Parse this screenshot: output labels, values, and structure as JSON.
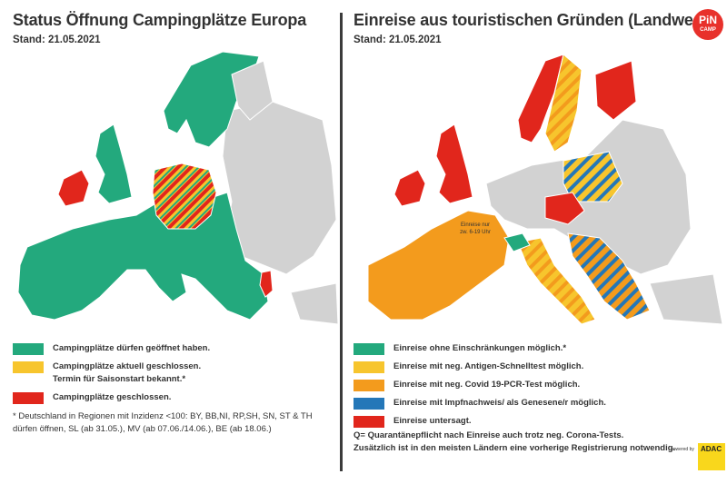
{
  "colors": {
    "green": "#23a97d",
    "yellow": "#f7c52d",
    "red": "#e1261c",
    "orange": "#f39b1d",
    "blue": "#2477b8",
    "grey": "#d2d2d2",
    "text": "#333333"
  },
  "left": {
    "title": "Status Öffnung Campingplätze Europa",
    "stand": "Stand: 21.05.2021",
    "legend": [
      {
        "color": "green",
        "text": "Campingplätze dürfen geöffnet haben."
      },
      {
        "color": "yellow",
        "text": "Campingplätze aktuell geschlossen."
      },
      {
        "color": "none",
        "text": "Termin für Saisonstart bekannt.*"
      },
      {
        "color": "red",
        "text": "Campingplätze geschlossen."
      }
    ],
    "footnote_line1": "* Deutschland in Regionen mit Inzidenz <100:  BY, BB,NI, RP,SH, SN, ST & TH",
    "footnote_line2": "dürfen öffnen, SL (ab 31.05.), MV (ab 07.06./14.06.), BE (ab 18.06.)"
  },
  "right": {
    "title": "Einreise aus touristischen Gründen (Landweg)",
    "stand": "Stand: 21.05.2021",
    "map_label_line1": "Einreise nur",
    "map_label_line2": "zw. 6-19 Uhr",
    "legend": [
      {
        "color": "green",
        "text": "Einreise ohne Einschränkungen möglich.*"
      },
      {
        "color": "yellow",
        "text": "Einreise mit neg. Antigen-Schnelltest möglich."
      },
      {
        "color": "orange",
        "text": "Einreise mit neg. Covid 19-PCR-Test möglich."
      },
      {
        "color": "blue",
        "text": "Einreise mit Impfnachweis/ als Genesene/r möglich."
      },
      {
        "color": "red",
        "text": "Einreise untersagt."
      }
    ],
    "note_line1": "Q= Quarantänepflicht nach Einreise auch trotz neg. Corona-Tests.",
    "note_line2": "Zusätzlich ist in den meisten Ländern eine vorherige Registrierung notwendig."
  },
  "logo": {
    "line1": "PiN",
    "line2": "CAMP"
  },
  "sponsor": {
    "powered": "powered by",
    "brand": "ADAC"
  }
}
